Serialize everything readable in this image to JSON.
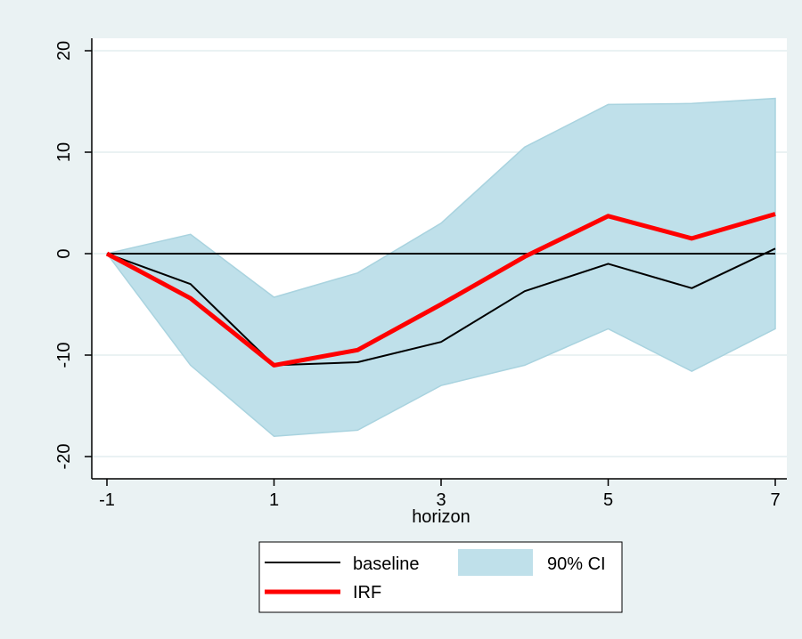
{
  "chart_data": {
    "type": "line",
    "title": "",
    "xlabel": "horizon",
    "ylabel": "",
    "x": [
      -1,
      0,
      1,
      2,
      3,
      4,
      5,
      6,
      7
    ],
    "xlim": [
      -1,
      7
    ],
    "ylim": [
      -20,
      20
    ],
    "xticks": [
      -1,
      1,
      3,
      5,
      7
    ],
    "yticks": [
      -20,
      -10,
      0,
      10,
      20
    ],
    "grid": true,
    "legend_position": "bottom",
    "series": [
      {
        "name": "baseline",
        "color": "#000000",
        "values": [
          0,
          -3.0,
          -11.0,
          -10.7,
          -8.7,
          -3.7,
          -1.0,
          -3.4,
          0.5
        ]
      },
      {
        "name": "IRF",
        "color": "#ff0000",
        "values": [
          0,
          -4.4,
          -11.0,
          -9.5,
          -5.0,
          -0.3,
          3.7,
          1.5,
          3.9
        ]
      }
    ],
    "band": {
      "name": "90% CI",
      "color": "#bfe0ea",
      "lower": [
        0,
        -11.0,
        -18.0,
        -17.4,
        -13.0,
        -11.0,
        -7.4,
        -11.6,
        -7.4
      ],
      "upper": [
        0,
        1.9,
        -4.3,
        -1.9,
        3.0,
        10.5,
        14.7,
        14.8,
        15.3
      ]
    },
    "reference_line": {
      "y": 0,
      "color": "#000000"
    },
    "background_color": "#eaf2f3",
    "plot_background_color": "#ffffff",
    "legend": [
      {
        "label": "baseline",
        "kind": "line",
        "color": "#000000"
      },
      {
        "label": "90% CI",
        "kind": "area",
        "color": "#bfe0ea"
      },
      {
        "label": "IRF",
        "kind": "line",
        "color": "#ff0000"
      }
    ]
  }
}
